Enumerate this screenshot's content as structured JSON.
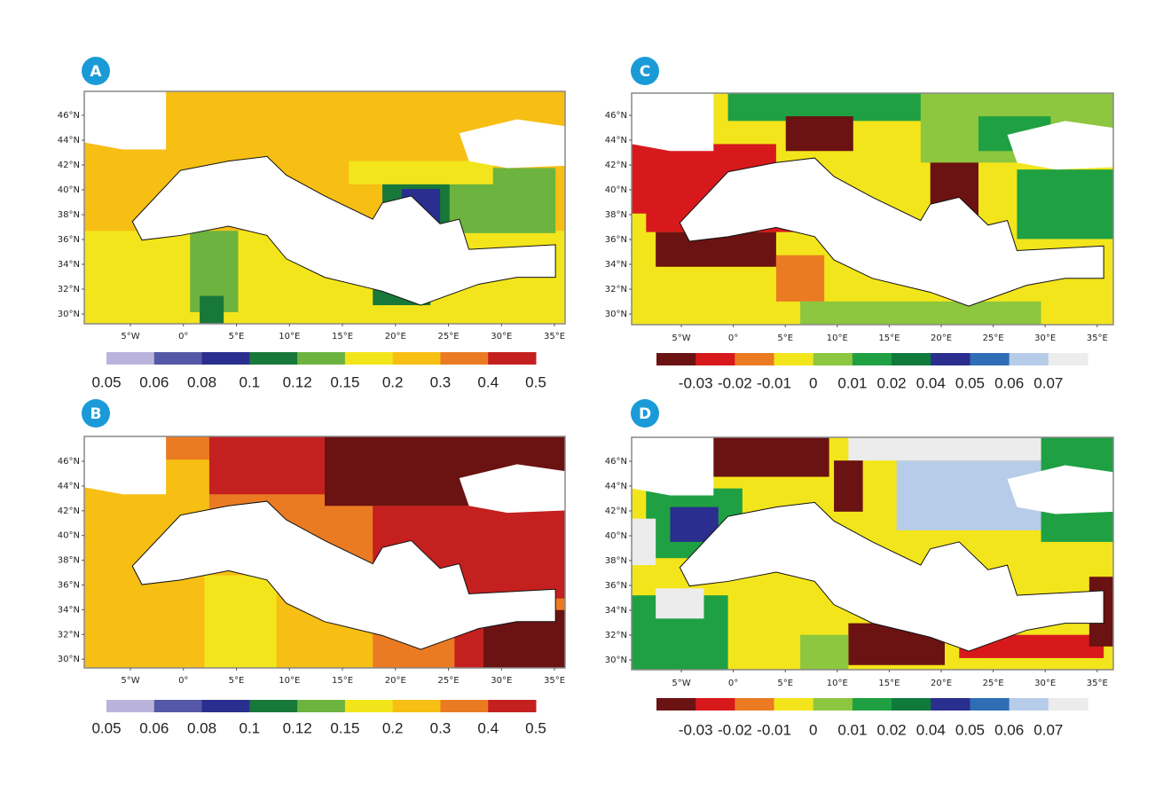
{
  "panels": [
    {
      "label": "A",
      "lat_labels": [
        "46°N",
        "44°N",
        "42°N",
        "40°N",
        "38°N",
        "36°N",
        "34°N",
        "32°N",
        "30°N"
      ],
      "lon_labels": [
        "5°W",
        "0°",
        "5°E",
        "10°E",
        "15°E",
        "20°E",
        "25°E",
        "30°E",
        "35°E"
      ],
      "colorbar": {
        "colors": [
          "#bab4dd",
          "#5458a6",
          "#2a2e8e",
          "#18783a",
          "#6db33f",
          "#f3e51b",
          "#f7be14",
          "#ea7b23",
          "#c4201f"
        ],
        "labels": [
          "0.05",
          "0.06",
          "0.08",
          "0.1",
          "0.12",
          "0.15",
          "0.2",
          "0.3",
          "0.4",
          "0.5"
        ]
      }
    },
    {
      "label": "B",
      "lat_labels": [
        "46°N",
        "44°N",
        "42°N",
        "40°N",
        "38°N",
        "36°N",
        "34°N",
        "32°N",
        "30°N"
      ],
      "lon_labels": [
        "5°W",
        "0°",
        "5°E",
        "10°E",
        "15°E",
        "20°E",
        "25°E",
        "30°E",
        "35°E"
      ],
      "colorbar": {
        "colors": [
          "#bab4dd",
          "#5458a6",
          "#2a2e8e",
          "#18783a",
          "#6db33f",
          "#f3e51b",
          "#f7be14",
          "#ea7b23",
          "#c4201f"
        ],
        "labels": [
          "0.05",
          "0.06",
          "0.08",
          "0.1",
          "0.12",
          "0.15",
          "0.2",
          "0.3",
          "0.4",
          "0.5"
        ]
      }
    },
    {
      "label": "C",
      "lat_labels": [
        "46°N",
        "44°N",
        "42°N",
        "40°N",
        "38°N",
        "36°N",
        "34°N",
        "32°N",
        "30°N"
      ],
      "lon_labels": [
        "5°W",
        "0°",
        "5°E",
        "10°E",
        "15°E",
        "20°E",
        "25°E",
        "30°E",
        "35°E"
      ],
      "colorbar": {
        "colors": [
          "#6b1212",
          "#d7191c",
          "#ea7b23",
          "#f3e51b",
          "#8dc63f",
          "#1fa043",
          "#0f7a3a",
          "#2a2e8e",
          "#2f6db5",
          "#b7cce9",
          "#ececec"
        ],
        "labels": [
          "-0.03",
          "-0.02",
          "-0.01",
          "0",
          "0.01",
          "0.02",
          "0.04",
          "0.05",
          "0.06",
          "0.07"
        ]
      }
    },
    {
      "label": "D",
      "lat_labels": [
        "46°N",
        "44°N",
        "42°N",
        "40°N",
        "38°N",
        "36°N",
        "34°N",
        "32°N",
        "30°N"
      ],
      "lon_labels": [
        "5°W",
        "0°",
        "5°E",
        "10°E",
        "15°E",
        "20°E",
        "25°E",
        "30°E",
        "35°E"
      ],
      "colorbar": {
        "colors": [
          "#6b1212",
          "#d7191c",
          "#ea7b23",
          "#f3e51b",
          "#8dc63f",
          "#1fa043",
          "#0f7a3a",
          "#2a2e8e",
          "#2f6db5",
          "#b7cce9",
          "#ececec"
        ],
        "labels": [
          "-0.03",
          "-0.02",
          "-0.01",
          "0",
          "0.01",
          "0.02",
          "0.04",
          "0.05",
          "0.06",
          "0.07"
        ]
      }
    }
  ]
}
